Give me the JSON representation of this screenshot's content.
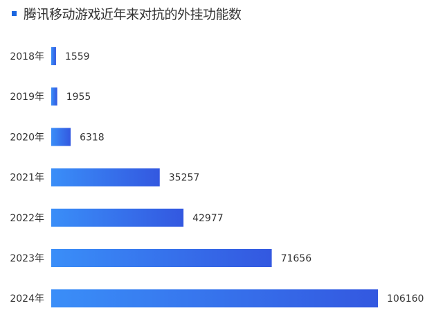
{
  "chart_data": {
    "type": "bar",
    "orientation": "horizontal",
    "title": "腾讯移动游戏近年来对抗的外挂功能数",
    "categories": [
      "2018年",
      "2019年",
      "2020年",
      "2021年",
      "2022年",
      "2023年",
      "2024年"
    ],
    "values": [
      1559,
      1955,
      6318,
      35257,
      42977,
      71656,
      106160
    ],
    "data_labels": [
      "1559",
      "1955",
      "6318",
      "35257",
      "42977",
      "71656",
      "106160"
    ],
    "xlim": [
      0,
      106160
    ],
    "grid": false,
    "colors": {
      "bar_start": "#3a8ef8",
      "bar_end": "#3358e0",
      "title_marker": "#1a66e0"
    }
  }
}
